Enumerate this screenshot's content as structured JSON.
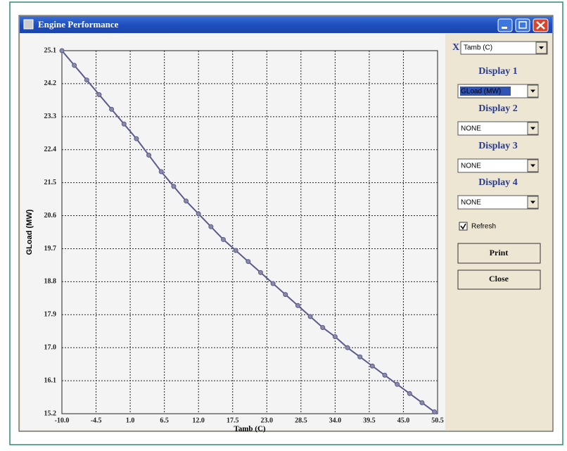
{
  "window": {
    "title": "Engine Performance"
  },
  "controls": {
    "x_label": "X",
    "x_select": "Tamb (C)",
    "displays": [
      {
        "label": "Display 1",
        "select": "GLoad (MW)"
      },
      {
        "label": "Display 2",
        "select": "NONE"
      },
      {
        "label": "Display 3",
        "select": "NONE"
      },
      {
        "label": "Display 4",
        "select": "NONE"
      }
    ],
    "refresh": "Refresh",
    "print": "Print",
    "close": "Close"
  },
  "chart_data": {
    "type": "line",
    "xlabel": "Tamb (C)",
    "ylabel": "GLoad (MW)",
    "color": "#5a5a8c",
    "grid": true,
    "x": [
      -10,
      -8,
      -6,
      -4,
      -2,
      0,
      2,
      4,
      6,
      8,
      10,
      12,
      14,
      16,
      18,
      20,
      22,
      24,
      26,
      28,
      30,
      32,
      34,
      36,
      38,
      40,
      42,
      44,
      46,
      48,
      50
    ],
    "values": [
      25.1,
      24.7,
      24.3,
      23.9,
      23.5,
      23.1,
      22.7,
      22.25,
      21.8,
      21.4,
      21.0,
      20.65,
      20.3,
      19.95,
      19.65,
      19.35,
      19.05,
      18.75,
      18.45,
      18.15,
      17.85,
      17.55,
      17.3,
      17.0,
      16.75,
      16.5,
      16.25,
      16.0,
      15.75,
      15.5,
      15.25
    ],
    "xlim": [
      -10,
      50.5
    ],
    "xticks": [
      {
        "value": -10,
        "label": "-10.0"
      },
      -4.5,
      {
        "value": 1,
        "label": "1.0"
      },
      6.5,
      {
        "value": 12,
        "label": "12.0"
      },
      17.5,
      {
        "value": 23,
        "label": "23.0"
      },
      28.5,
      {
        "value": 34,
        "label": "34.0"
      },
      39.5,
      {
        "value": 45,
        "label": "45.0"
      },
      50.5
    ],
    "ylim": [
      15.2,
      25.1
    ],
    "yticks": [
      15.2,
      16.1,
      {
        "value": 17,
        "label": "17.0"
      },
      17.9,
      18.8,
      19.7,
      20.6,
      21.5,
      22.4,
      23.3,
      24.2,
      25.1
    ]
  }
}
